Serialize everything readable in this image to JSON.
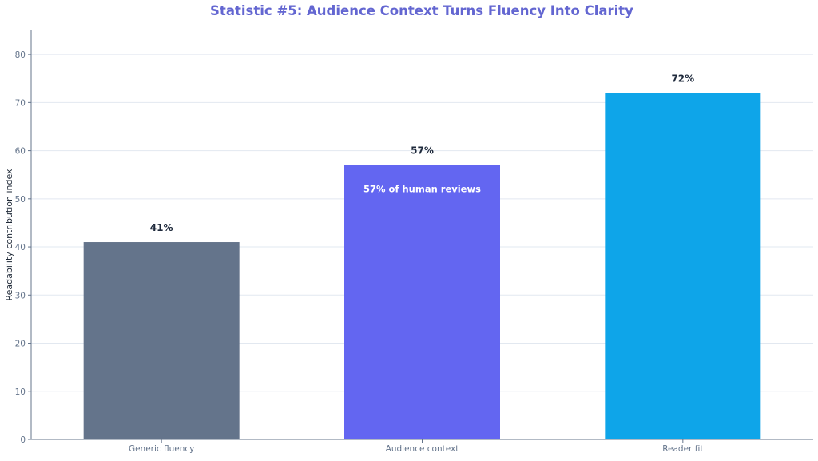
{
  "chart_data": {
    "type": "bar",
    "title": "Statistic #5: Audience Context Turns Fluency Into Clarity",
    "xlabel": "",
    "ylabel": "Readability contribution index",
    "categories": [
      "Generic fluency",
      "Audience context",
      "Reader fit"
    ],
    "values": [
      41,
      57,
      72
    ],
    "value_labels": [
      "41%",
      "57%",
      "72%"
    ],
    "bar_colors": [
      "#64748b",
      "#6366f1",
      "#0ea5e9"
    ],
    "annotations": [
      {
        "category": "Audience context",
        "text": "57% of human reviews",
        "placement": "inside-top"
      }
    ],
    "ylim": [
      0,
      85
    ],
    "yticks": [
      0,
      10,
      20,
      30,
      40,
      50,
      60,
      70,
      80
    ],
    "grid": true
  },
  "colors": {
    "title": "#6366d1",
    "axis": "#64748b",
    "grid": "#e2e8f0",
    "tick_text": "#64748b",
    "value_text": "#1e293b",
    "annotation_text": "#ffffff"
  }
}
